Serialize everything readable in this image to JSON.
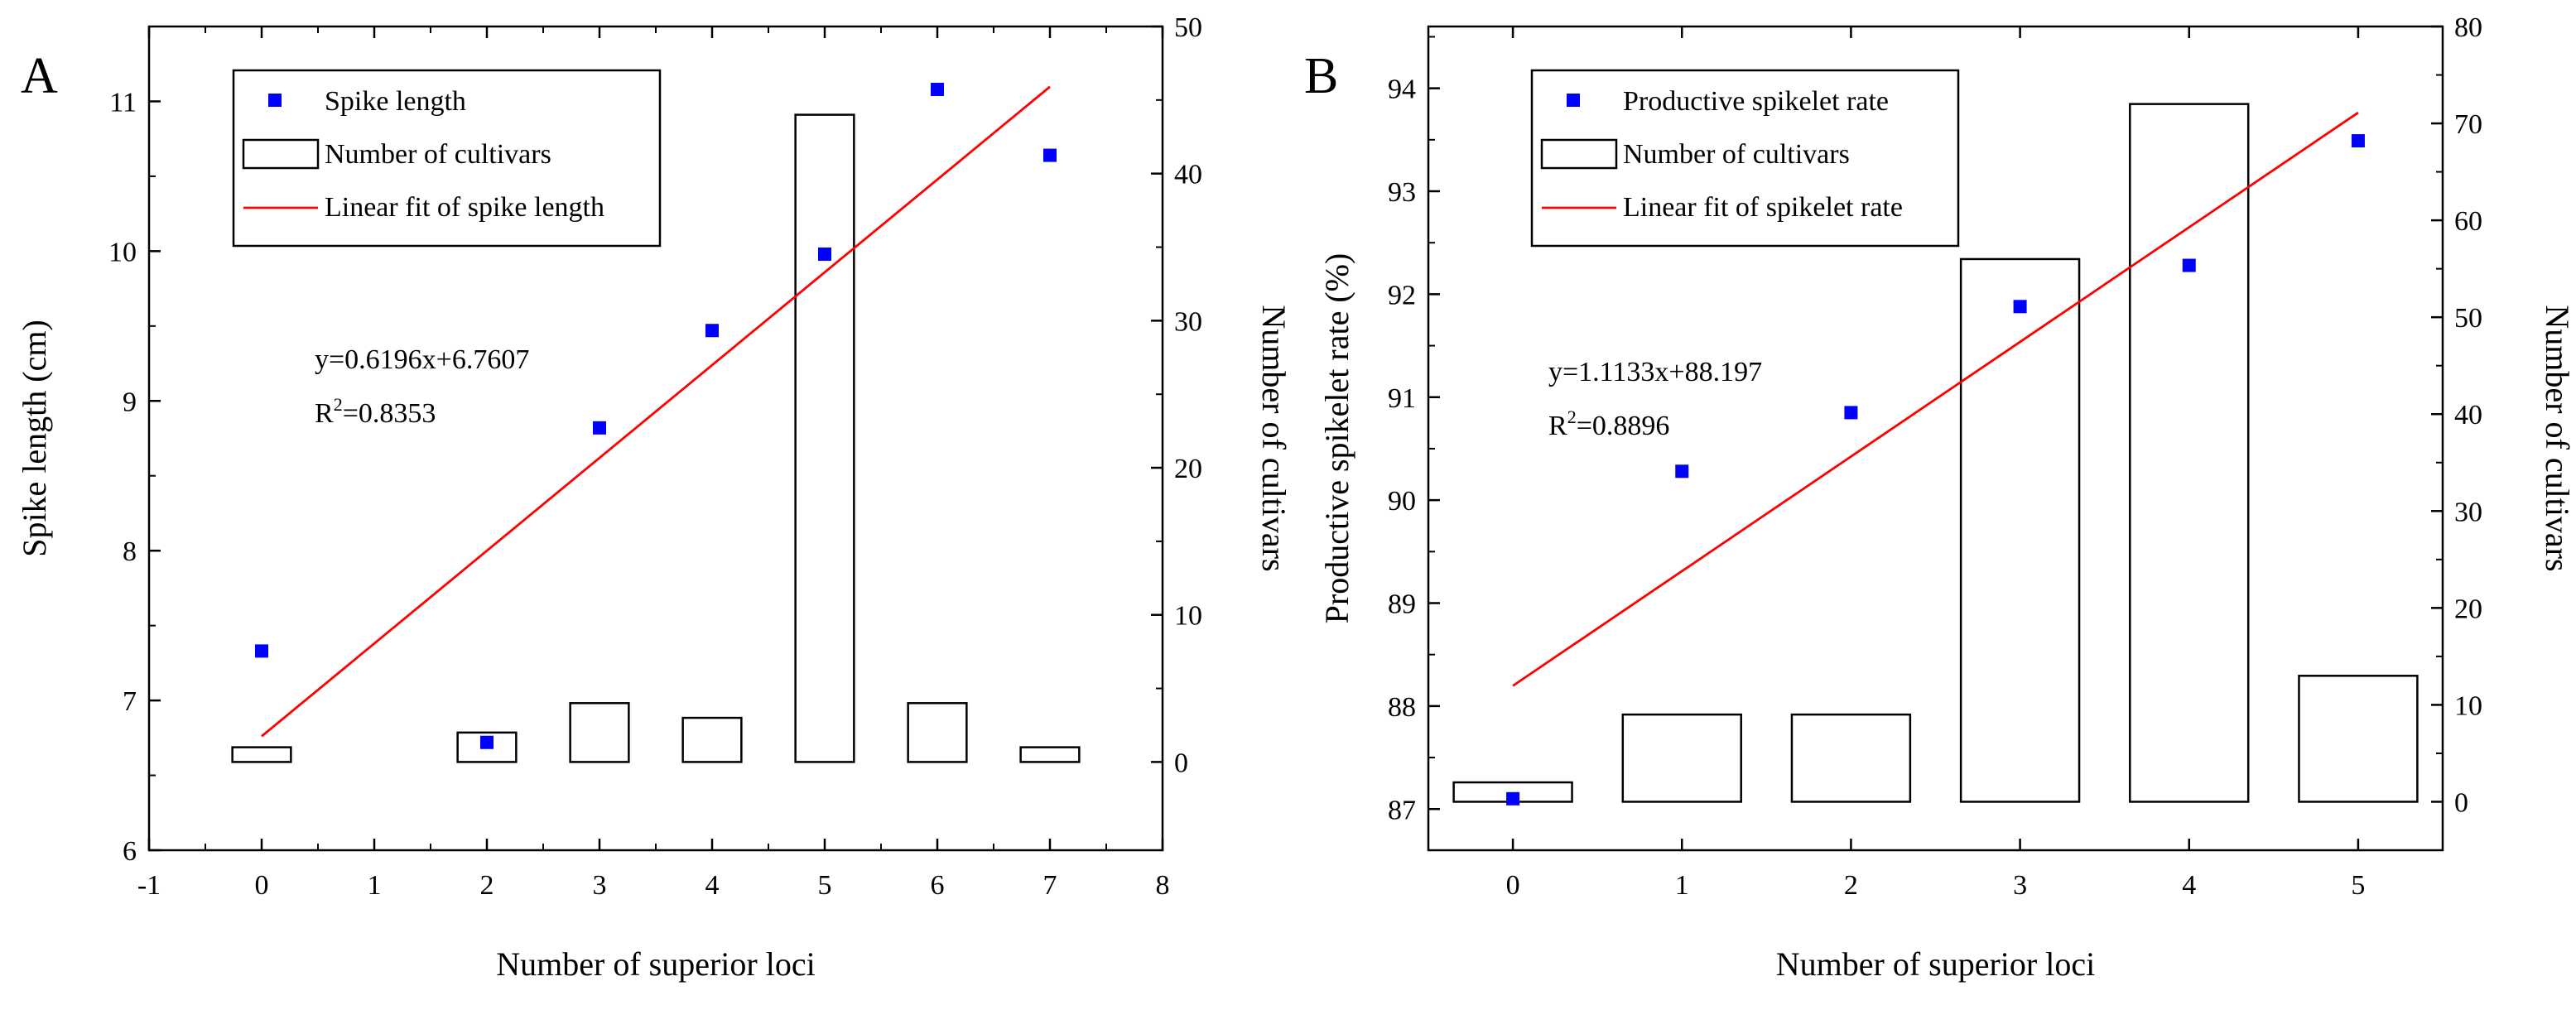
{
  "chart_data": [
    {
      "panel": "A",
      "type": "bar+scatter+line",
      "xlabel": "Number of superior loci",
      "ylabel_left": "Spike length (cm)",
      "ylabel_right": "Number of cultivars",
      "xlim": [
        -1,
        8
      ],
      "ylim_left": [
        6,
        11.5
      ],
      "ylim_right": [
        -6,
        50
      ],
      "xticks": [
        "-1",
        "0",
        "1",
        "2",
        "3",
        "4",
        "5",
        "6",
        "7",
        "8"
      ],
      "yticks_left": [
        "6",
        "7",
        "8",
        "9",
        "10",
        "11"
      ],
      "yticks_right": [
        "0",
        "10",
        "20",
        "30",
        "40",
        "50"
      ],
      "bars": {
        "name": "Number of cultivars",
        "x": [
          0,
          2,
          3,
          4,
          5,
          6,
          7
        ],
        "values": [
          1,
          2,
          4,
          3,
          44,
          4,
          1
        ]
      },
      "scatter": {
        "name": "Spike length",
        "x": [
          0,
          2,
          3,
          4,
          5,
          6,
          7
        ],
        "values": [
          7.33,
          6.72,
          8.82,
          9.47,
          9.98,
          11.08,
          10.64
        ]
      },
      "fit": {
        "name": "Linear fit of spike length",
        "slope": 0.6196,
        "intercept": 6.7607,
        "x_range": [
          0,
          7
        ]
      },
      "annotation_eq": "y=0.6196x+6.7607",
      "annotation_r2_pre": "R",
      "annotation_r2_sup": "2",
      "annotation_r2_post": "=0.8353",
      "legend_position": "top-left",
      "colors": {
        "scatter": "#0000ff",
        "fit": "#ff0000",
        "bars": "#000000"
      }
    },
    {
      "panel": "B",
      "type": "bar+scatter+line",
      "xlabel": "Number of superior loci",
      "ylabel_left": "Productive spikelet rate (%)",
      "ylabel_right": "Number of cultivars",
      "xlim": [
        -0.5,
        5.5
      ],
      "ylim_left": [
        86.6,
        94.6
      ],
      "ylim_right": [
        -5,
        80
      ],
      "xticks": [
        "0",
        "1",
        "2",
        "3",
        "4",
        "5"
      ],
      "yticks_left": [
        "87",
        "88",
        "89",
        "90",
        "91",
        "92",
        "93",
        "94"
      ],
      "yticks_right": [
        "0",
        "10",
        "20",
        "30",
        "40",
        "50",
        "60",
        "70",
        "80"
      ],
      "bars": {
        "name": "Number of cultivars",
        "x": [
          0,
          1,
          2,
          3,
          4,
          5
        ],
        "values": [
          2,
          9,
          9,
          56,
          72,
          13
        ]
      },
      "scatter": {
        "name": "Productive spikelet rate",
        "x": [
          0,
          1,
          2,
          3,
          4,
          5
        ],
        "values": [
          87.1,
          90.28,
          90.85,
          91.88,
          92.28,
          93.49
        ]
      },
      "fit": {
        "name": "Linear fit of spikelet rate",
        "slope": 1.1133,
        "intercept": 88.197,
        "x_range": [
          0,
          5
        ]
      },
      "annotation_eq": "y=1.1133x+88.197",
      "annotation_r2_pre": "R",
      "annotation_r2_sup": "2",
      "annotation_r2_post": "=0.8896",
      "legend_position": "top-left",
      "colors": {
        "scatter": "#0000ff",
        "fit": "#ff0000",
        "bars": "#000000"
      }
    }
  ]
}
